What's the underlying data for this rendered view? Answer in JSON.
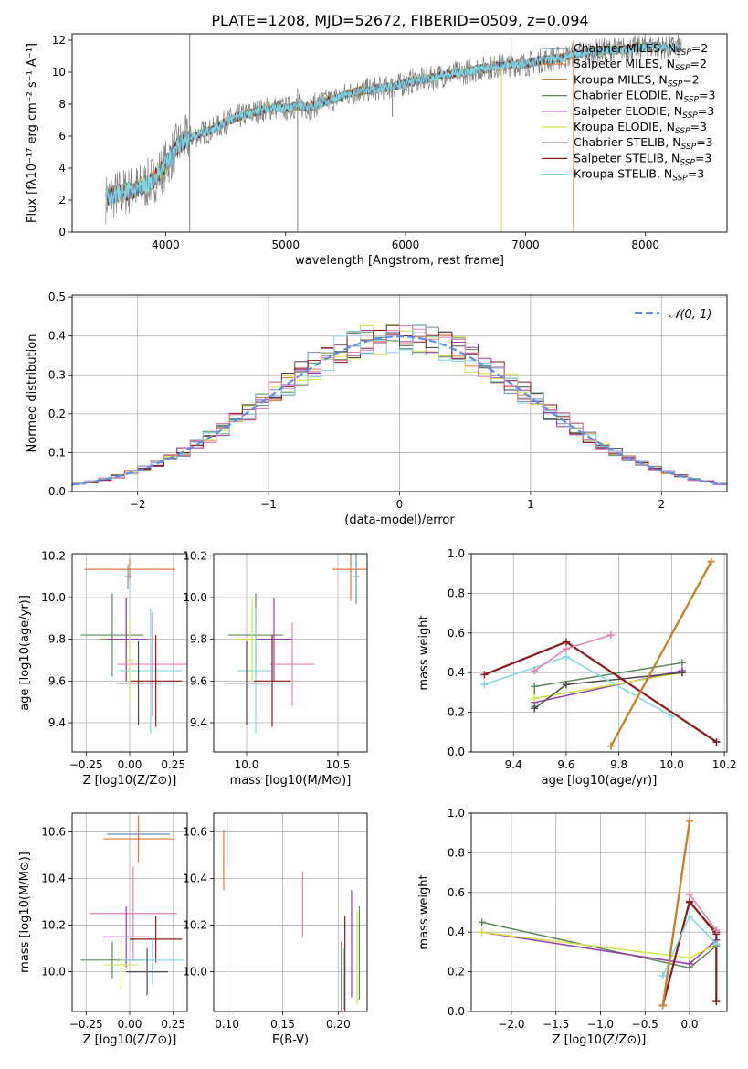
{
  "title": "PLATE=1208, MJD=52672, FIBERID=0509, z=0.094",
  "colors": {
    "data": "#808080",
    "Chabrier MILES": "#6c8ebf",
    "Salpeter MILES": "#e07b39",
    "Kroupa MILES": "#c8822e",
    "Chabrier ELODIE": "#5a8a5e",
    "Salpeter ELODIE": "#9b3db0",
    "Kroupa ELODIE": "#d4e34a",
    "Chabrier STELIB": "#4a4a4a",
    "Salpeter STELIB": "#8b1a1a",
    "Kroupa STELIB": "#7fd8e0",
    "gauss": "#5b8ee6",
    "pink": "#e87fb0"
  },
  "legend": [
    {
      "key": "Chabrier MILES",
      "label": "Chabrier MILES, N",
      "sub": "SSP",
      "tail": "=2"
    },
    {
      "key": "Salpeter MILES",
      "label": "Salpeter MILES, N",
      "sub": "SSP",
      "tail": "=2"
    },
    {
      "key": "Kroupa MILES",
      "label": "Kroupa MILES, N",
      "sub": "SSP",
      "tail": "=2"
    },
    {
      "key": "Chabrier ELODIE",
      "label": "Chabrier ELODIE, N",
      "sub": "SSP",
      "tail": "=3"
    },
    {
      "key": "Salpeter ELODIE",
      "label": "Salpeter ELODIE, N",
      "sub": "SSP",
      "tail": "=3"
    },
    {
      "key": "Kroupa ELODIE",
      "label": "Kroupa ELODIE, N",
      "sub": "SSP",
      "tail": "=3"
    },
    {
      "key": "Chabrier STELIB",
      "label": "Chabrier STELIB, N",
      "sub": "SSP",
      "tail": "=3"
    },
    {
      "key": "Salpeter STELIB",
      "label": "Salpeter STELIB, N",
      "sub": "SSP",
      "tail": "=3"
    },
    {
      "key": "Kroupa STELIB",
      "label": "Kroupa STELIB, N",
      "sub": "SSP",
      "tail": "=3"
    }
  ],
  "chart_data": [
    {
      "id": "spectrum",
      "type": "line",
      "xlabel": "wavelength [Angstrom, rest frame]",
      "ylabel": "Flux [fλ10⁻¹⁷ erg cm⁻² s⁻¹ A⁻¹]",
      "xlim": [
        3220,
        8680
      ],
      "ylim": [
        0,
        12.4
      ],
      "xticks": [
        4000,
        5000,
        6000,
        7000,
        8000
      ],
      "yticks": [
        0,
        2,
        4,
        6,
        8,
        10,
        12
      ],
      "grid": false,
      "legend_position": "right",
      "continuum": [
        [
          3500,
          2.1
        ],
        [
          3600,
          2.4
        ],
        [
          3700,
          2.6
        ],
        [
          3800,
          2.8
        ],
        [
          3900,
          3.3
        ],
        [
          4000,
          4.2
        ],
        [
          4100,
          5.4
        ],
        [
          4200,
          5.9
        ],
        [
          4300,
          6.2
        ],
        [
          4400,
          6.4
        ],
        [
          4500,
          6.9
        ],
        [
          4600,
          7.2
        ],
        [
          4700,
          7.4
        ],
        [
          4800,
          7.6
        ],
        [
          4900,
          7.8
        ],
        [
          5000,
          7.7
        ],
        [
          5100,
          7.9
        ],
        [
          5200,
          7.8
        ],
        [
          5300,
          8.1
        ],
        [
          5400,
          8.3
        ],
        [
          5500,
          8.6
        ],
        [
          5600,
          8.8
        ],
        [
          5700,
          8.9
        ],
        [
          5800,
          9.0
        ],
        [
          5900,
          9.1
        ],
        [
          6000,
          9.3
        ],
        [
          6100,
          9.5
        ],
        [
          6200,
          9.6
        ],
        [
          6300,
          9.8
        ],
        [
          6400,
          9.9
        ],
        [
          6500,
          10.0
        ],
        [
          6600,
          10.2
        ],
        [
          6700,
          10.3
        ],
        [
          6800,
          10.4
        ],
        [
          6900,
          10.5
        ],
        [
          7000,
          10.5
        ],
        [
          7100,
          10.7
        ],
        [
          7200,
          10.8
        ],
        [
          7300,
          10.9
        ],
        [
          7400,
          11.1
        ],
        [
          7500,
          11.2
        ],
        [
          7600,
          11.3
        ],
        [
          7700,
          11.4
        ],
        [
          7800,
          11.4
        ],
        [
          7900,
          11.5
        ],
        [
          8000,
          11.6
        ],
        [
          8100,
          11.6
        ],
        [
          8200,
          11.5
        ],
        [
          8300,
          11.6
        ]
      ],
      "features": [
        {
          "x": 4200,
          "y_low": 0,
          "y_high": 12.4,
          "series": "data"
        },
        {
          "x": 5100,
          "y_low": 0,
          "y_high": 9.0,
          "series": "data"
        },
        {
          "x": 5890,
          "y_low": 7.2,
          "y_high": 9.6,
          "series": "data"
        },
        {
          "x": 6800,
          "y_low": 0,
          "y_high": 10.3,
          "series": "Kroupa ELODIE"
        },
        {
          "x": 7400,
          "y_low": 0,
          "y_high": 12.0,
          "series": "Salpeter MILES"
        },
        {
          "x": 6880,
          "y_low": 9.8,
          "y_high": 12.2,
          "series": "data"
        }
      ]
    },
    {
      "id": "residuals",
      "type": "bar",
      "xlabel": "(data-model)/error",
      "ylabel": "Normed distribution",
      "xlim": [
        -2.5,
        2.5
      ],
      "ylim": [
        0,
        0.505
      ],
      "xticks": [
        -2,
        -1,
        0,
        1,
        2
      ],
      "yticks": [
        0.0,
        0.1,
        0.2,
        0.3,
        0.4,
        0.5
      ],
      "grid": true,
      "legend_position": "upper right",
      "legend_label": "𝒩(0, 1)",
      "bin_width": 0.1
    },
    {
      "id": "age_vs_Z",
      "type": "scatter",
      "xlabel": "Z [log10(Z/Z⊙)]",
      "ylabel": "age  [log10(age/yr)]",
      "xlim": [
        -0.33,
        0.33
      ],
      "ylim": [
        9.26,
        10.21
      ],
      "xticks": [
        -0.25,
        0.0,
        0.25
      ],
      "yticks": [
        9.4,
        9.6,
        9.8,
        10.0,
        10.2
      ],
      "grid": true,
      "points": [
        {
          "series": "Salpeter MILES",
          "x": 0.0,
          "y": 10.135,
          "xerr": 0.26,
          "yerr": 0.05
        },
        {
          "series": "Chabrier MILES",
          "x": -0.01,
          "y": 10.1,
          "xerr": 0.02,
          "yerr": 0.06
        },
        {
          "series": "Chabrier ELODIE",
          "x": -0.1,
          "y": 9.82,
          "xerr": 0.18,
          "yerr": 0.2
        },
        {
          "series": "Kroupa MILES",
          "x": -0.02,
          "y": 9.8,
          "xerr": 0.15,
          "yerr": 0.2
        },
        {
          "series": "Salpeter ELODIE",
          "x": -0.02,
          "y": 9.8,
          "xerr": 0.12,
          "yerr": 0.2
        },
        {
          "series": "pink",
          "x": 0.13,
          "y": 9.68,
          "xerr": 0.2,
          "yerr": 0.25
        },
        {
          "series": "Kroupa STELIB",
          "x": 0.12,
          "y": 9.65,
          "xerr": 0.18,
          "yerr": 0.3
        },
        {
          "series": "Chabrier STELIB",
          "x": 0.05,
          "y": 9.59,
          "xerr": 0.13,
          "yerr": 0.2
        },
        {
          "series": "Salpeter STELIB",
          "x": 0.15,
          "y": 9.6,
          "xerr": 0.15,
          "yerr": 0.22
        },
        {
          "series": "Kroupa ELODIE",
          "x": 0.0,
          "y": 9.7,
          "xerr": 0.02,
          "yerr": 0.2
        }
      ]
    },
    {
      "id": "age_vs_mass",
      "type": "scatter",
      "xlabel": "mass [log10(M/M⊙)]",
      "ylabel": "",
      "xlim": [
        9.82,
        10.66
      ],
      "ylim": [
        9.26,
        10.21
      ],
      "xticks": [
        10.0,
        10.5
      ],
      "yticks": [
        9.4,
        9.6,
        9.8,
        10.0,
        10.2
      ],
      "grid": true,
      "points": [
        {
          "series": "Salpeter MILES",
          "x": 10.57,
          "y": 10.135,
          "xerr": 0.1,
          "yerr": 0.15
        },
        {
          "series": "Chabrier MILES",
          "x": 10.6,
          "y": 10.1,
          "xerr": 0.02,
          "yerr": 0.13
        },
        {
          "series": "Chabrier ELODIE",
          "x": 10.05,
          "y": 9.82,
          "xerr": 0.15,
          "yerr": 0.2
        },
        {
          "series": "Kroupa ELODIE",
          "x": 10.03,
          "y": 9.8,
          "xerr": 0.08,
          "yerr": 0.2
        },
        {
          "series": "Salpeter ELODIE",
          "x": 10.15,
          "y": 9.8,
          "xerr": 0.1,
          "yerr": 0.2
        },
        {
          "series": "pink",
          "x": 10.25,
          "y": 9.68,
          "xerr": 0.12,
          "yerr": 0.2
        },
        {
          "series": "Kroupa STELIB",
          "x": 10.05,
          "y": 9.65,
          "xerr": 0.1,
          "yerr": 0.3
        },
        {
          "series": "Chabrier STELIB",
          "x": 10.0,
          "y": 9.59,
          "xerr": 0.12,
          "yerr": 0.2
        },
        {
          "series": "Salpeter STELIB",
          "x": 10.14,
          "y": 9.6,
          "xerr": 0.1,
          "yerr": 0.22
        }
      ]
    },
    {
      "id": "massweight_vs_age",
      "type": "line",
      "xlabel": "age  [log10(age/yr)]",
      "ylabel": "mass weight",
      "xlim": [
        9.24,
        10.21
      ],
      "ylim": [
        0,
        1.0
      ],
      "xticks": [
        9.4,
        9.6,
        9.8,
        10.0,
        10.2
      ],
      "yticks": [
        0.0,
        0.2,
        0.4,
        0.6,
        0.8,
        1.0
      ],
      "grid": true,
      "series": [
        {
          "key": "Chabrier ELODIE",
          "x": [
            9.48,
            9.48,
            10.04
          ],
          "y": [
            0.23,
            0.33,
            0.45
          ]
        },
        {
          "key": "Salpeter ELODIE",
          "x": [
            9.48,
            10.04
          ],
          "y": [
            0.25,
            0.41
          ]
        },
        {
          "key": "Kroupa ELODIE",
          "x": [
            9.48,
            10.04
          ],
          "y": [
            0.27,
            0.4
          ]
        },
        {
          "key": "Chabrier STELIB",
          "x": [
            9.48,
            9.6,
            10.04
          ],
          "y": [
            0.22,
            0.34,
            0.4
          ]
        },
        {
          "key": "Salpeter STELIB",
          "x": [
            9.29,
            9.6,
            10.17
          ],
          "y": [
            0.39,
            0.555,
            0.05
          ]
        },
        {
          "key": "Kroupa STELIB",
          "x": [
            9.29,
            9.6,
            10.0
          ],
          "y": [
            0.34,
            0.48,
            0.18
          ]
        },
        {
          "key": "pink",
          "x": [
            9.48,
            9.6,
            9.77
          ],
          "y": [
            0.41,
            0.52,
            0.59
          ]
        },
        {
          "key": "Salpeter MILES",
          "x": [
            9.77,
            10.15
          ],
          "y": [
            0.03,
            0.96
          ]
        },
        {
          "key": "Kroupa MILES",
          "x": [
            9.77,
            10.15
          ],
          "y": [
            0.03,
            0.96
          ]
        }
      ]
    },
    {
      "id": "mass_vs_Z",
      "type": "scatter",
      "xlabel": "Z [log10(Z/Z⊙)]",
      "ylabel": "mass [log10(M/M⊙)]",
      "xlim": [
        -0.33,
        0.33
      ],
      "ylim": [
        9.83,
        10.68
      ],
      "xticks": [
        -0.25,
        0.0,
        0.25
      ],
      "yticks": [
        10.0,
        10.2,
        10.4,
        10.6
      ],
      "grid": true,
      "points": [
        {
          "series": "Chabrier MILES",
          "x": 0.05,
          "y": 10.59,
          "xerr": 0.18,
          "yerr": 0.05
        },
        {
          "series": "Salpeter MILES",
          "x": 0.05,
          "y": 10.57,
          "xerr": 0.2,
          "yerr": 0.1
        },
        {
          "series": "pink",
          "x": 0.02,
          "y": 10.25,
          "xerr": 0.25,
          "yerr": 0.2
        },
        {
          "series": "Salpeter ELODIE",
          "x": -0.02,
          "y": 10.15,
          "xerr": 0.13,
          "yerr": 0.13
        },
        {
          "series": "Salpeter STELIB",
          "x": 0.15,
          "y": 10.14,
          "xerr": 0.15,
          "yerr": 0.1
        },
        {
          "series": "Chabrier ELODIE",
          "x": -0.1,
          "y": 10.05,
          "xerr": 0.18,
          "yerr": 0.08
        },
        {
          "series": "Kroupa STELIB",
          "x": 0.13,
          "y": 10.05,
          "xerr": 0.18,
          "yerr": 0.1
        },
        {
          "series": "Kroupa ELODIE",
          "x": -0.05,
          "y": 10.03,
          "xerr": 0.1,
          "yerr": 0.1
        },
        {
          "series": "Chabrier STELIB",
          "x": 0.1,
          "y": 10.0,
          "xerr": 0.12,
          "yerr": 0.1
        }
      ]
    },
    {
      "id": "mass_vs_EBV",
      "type": "scatter",
      "xlabel": "E(B-V)",
      "ylabel": "",
      "xlim": [
        0.088,
        0.226
      ],
      "ylim": [
        9.83,
        10.68
      ],
      "xticks": [
        0.1,
        0.15,
        0.2
      ],
      "yticks": [
        10.0,
        10.2,
        10.4,
        10.6
      ],
      "grid": true,
      "points": [
        {
          "series": "Chabrier MILES",
          "x": 0.1,
          "y": 10.55,
          "xerr": 0,
          "yerr": 0.1
        },
        {
          "series": "Salpeter MILES",
          "x": 0.097,
          "y": 10.48,
          "xerr": 0,
          "yerr": 0.13
        },
        {
          "series": "pink",
          "x": 0.168,
          "y": 10.29,
          "xerr": 0,
          "yerr": 0.14
        },
        {
          "series": "Salpeter ELODIE",
          "x": 0.212,
          "y": 10.12,
          "xerr": 0,
          "yerr": 0.23
        },
        {
          "series": "Salpeter STELIB",
          "x": 0.206,
          "y": 10.0,
          "xerr": 0,
          "yerr": 0.24
        },
        {
          "series": "Chabrier STELIB",
          "x": 0.203,
          "y": 9.97,
          "xerr": 0,
          "yerr": 0.16
        },
        {
          "series": "Kroupa STELIB",
          "x": 0.205,
          "y": 9.97,
          "xerr": 0,
          "yerr": 0.13
        },
        {
          "series": "Chabrier ELODIE",
          "x": 0.219,
          "y": 10.08,
          "xerr": 0,
          "yerr": 0.2
        },
        {
          "series": "Kroupa ELODIE",
          "x": 0.217,
          "y": 10.06,
          "xerr": 0,
          "yerr": 0.2
        }
      ]
    },
    {
      "id": "massweight_vs_Z",
      "type": "line",
      "xlabel": "Z [log10(Z/Z⊙)]",
      "ylabel": "mass weight",
      "xlim": [
        -2.45,
        0.42
      ],
      "ylim": [
        0,
        1.0
      ],
      "xticks": [
        -2.0,
        -1.5,
        -1.0,
        -0.5,
        0.0
      ],
      "yticks": [
        0.0,
        0.2,
        0.4,
        0.6,
        0.8,
        1.0
      ],
      "grid": true,
      "series": [
        {
          "key": "Chabrier ELODIE",
          "x": [
            -2.33,
            0.0,
            0.3
          ],
          "y": [
            0.45,
            0.22,
            0.33
          ]
        },
        {
          "key": "Salpeter ELODIE",
          "x": [
            -2.33,
            0.0,
            0.3
          ],
          "y": [
            0.4,
            0.24,
            0.36
          ]
        },
        {
          "key": "Kroupa ELODIE",
          "x": [
            -2.33,
            0.0,
            0.3
          ],
          "y": [
            0.4,
            0.27,
            0.34
          ]
        },
        {
          "key": "Chabrier STELIB",
          "x": [
            -0.3,
            0.0,
            0.3
          ],
          "y": [
            0.03,
            0.55,
            0.4
          ]
        },
        {
          "key": "Salpeter STELIB",
          "x": [
            -0.3,
            0.0,
            0.3,
            0.3
          ],
          "y": [
            0.03,
            0.555,
            0.39,
            0.05
          ]
        },
        {
          "key": "Kroupa STELIB",
          "x": [
            -0.3,
            0.0,
            0.3
          ],
          "y": [
            0.18,
            0.48,
            0.34
          ]
        },
        {
          "key": "pink",
          "x": [
            0.0,
            0.3
          ],
          "y": [
            0.59,
            0.41
          ]
        },
        {
          "key": "Salpeter MILES",
          "x": [
            -0.3,
            0.0
          ],
          "y": [
            0.03,
            0.96
          ]
        },
        {
          "key": "Kroupa MILES",
          "x": [
            -0.3,
            0.0
          ],
          "y": [
            0.03,
            0.96
          ]
        }
      ]
    }
  ]
}
